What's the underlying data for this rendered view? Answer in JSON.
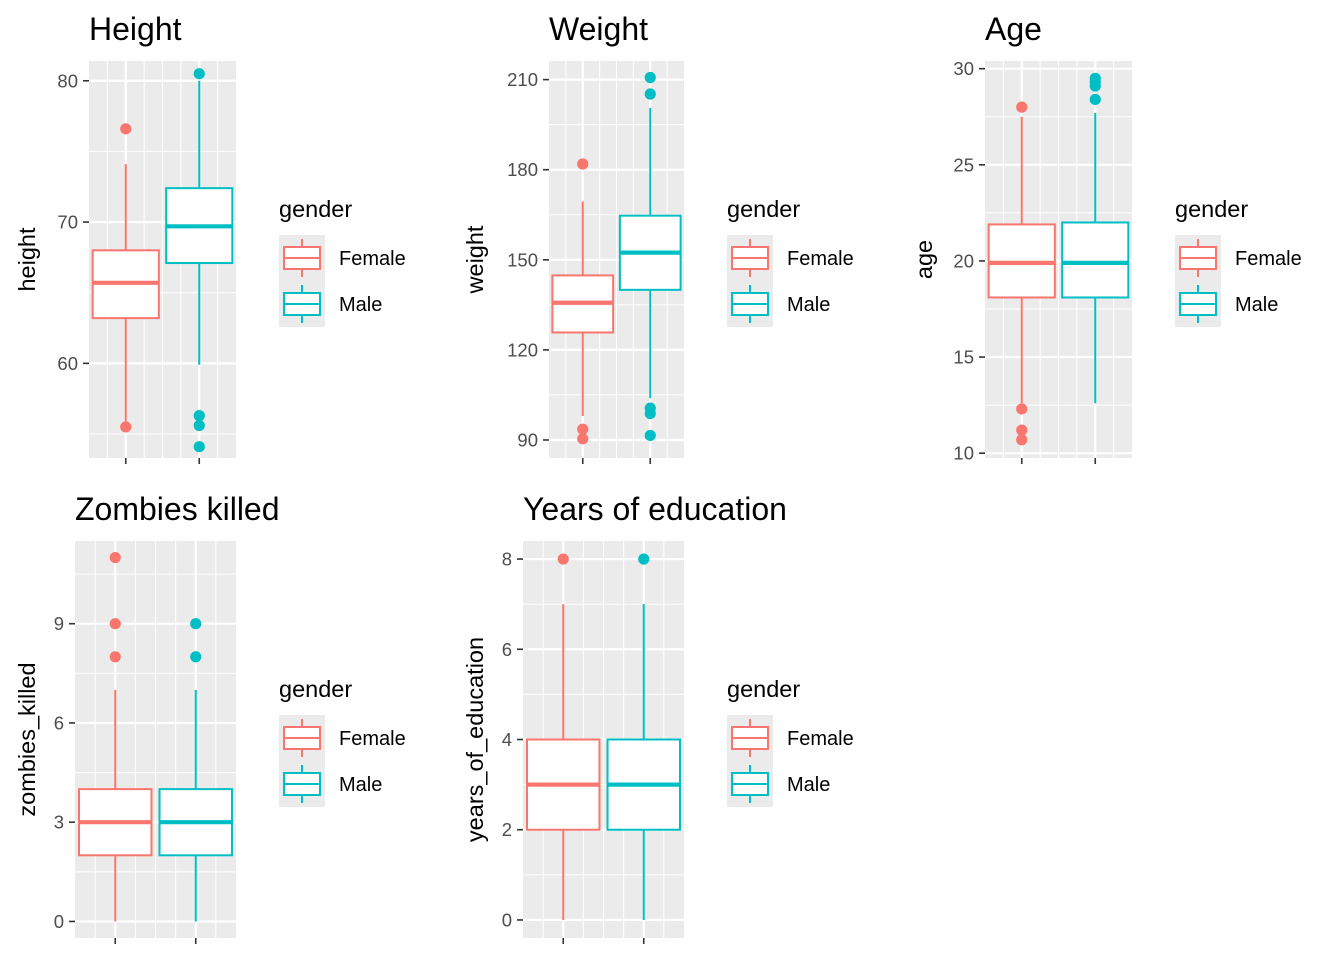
{
  "colors": {
    "Female": "#F8766D",
    "Male": "#00BFC4",
    "panel": "#EBEBEB",
    "grid_major": "#FFFFFF",
    "tick": "#333333"
  },
  "chart_data": [
    {
      "type": "boxplot",
      "title": "Height",
      "ylabel": "height",
      "xlabel": "",
      "yticks": [
        60,
        70,
        80
      ],
      "ylim": [
        53.3,
        81.4
      ],
      "legend": {
        "title": "gender",
        "entries": [
          "Female",
          "Male"
        ],
        "placement": "right"
      },
      "series": [
        {
          "name": "Female",
          "q1": 63.2,
          "median": 65.7,
          "q3": 68.0,
          "whisker_low": 55.5,
          "whisker_high": 74.1,
          "outliers": [
            55.5,
            76.6
          ]
        },
        {
          "name": "Male",
          "q1": 67.1,
          "median": 69.7,
          "q3": 72.4,
          "whisker_low": 59.9,
          "whisker_high": 80.0,
          "outliers": [
            56.3,
            55.6,
            54.1,
            80.5
          ]
        }
      ]
    },
    {
      "type": "boxplot",
      "title": "Weight",
      "ylabel": "weight",
      "xlabel": "",
      "yticks": [
        90,
        120,
        150,
        180,
        210
      ],
      "ylim": [
        84.0,
        216.2
      ],
      "legend": {
        "title": "gender",
        "entries": [
          "Female",
          "Male"
        ],
        "placement": "right"
      },
      "series": [
        {
          "name": "Female",
          "q1": 125.8,
          "median": 135.7,
          "q3": 144.8,
          "whisker_low": 98.0,
          "whisker_high": 169.4,
          "outliers": [
            181.9,
            93.6,
            90.4
          ]
        },
        {
          "name": "Male",
          "q1": 140.0,
          "median": 152.4,
          "q3": 164.7,
          "whisker_low": 103.9,
          "whisker_high": 200.6,
          "outliers": [
            210.7,
            205.2,
            100.6,
            98.8,
            91.5
          ]
        }
      ]
    },
    {
      "type": "boxplot",
      "title": "Age",
      "ylabel": "age",
      "xlabel": "",
      "yticks": [
        10,
        15,
        20,
        25,
        30
      ],
      "ylim": [
        9.75,
        30.4
      ],
      "legend": {
        "title": "gender",
        "entries": [
          "Female",
          "Male"
        ],
        "placement": "right"
      },
      "series": [
        {
          "name": "Female",
          "q1": 18.1,
          "median": 19.9,
          "q3": 21.9,
          "whisker_low": 12.6,
          "whisker_high": 27.5,
          "outliers": [
            28.0,
            12.3,
            11.2,
            10.7
          ]
        },
        {
          "name": "Male",
          "q1": 18.1,
          "median": 19.9,
          "q3": 22.0,
          "whisker_low": 12.6,
          "whisker_high": 27.7,
          "outliers": [
            29.5,
            29.3,
            29.1,
            28.4
          ]
        }
      ]
    },
    {
      "type": "boxplot",
      "title": "Zombies killed",
      "ylabel": "zombies_killed",
      "xlabel": "",
      "yticks": [
        0,
        3,
        6,
        9
      ],
      "ylim": [
        -0.5,
        11.5
      ],
      "legend": {
        "title": "gender",
        "entries": [
          "Female",
          "Male"
        ],
        "placement": "right"
      },
      "series": [
        {
          "name": "Female",
          "q1": 2,
          "median": 3,
          "q3": 4,
          "whisker_low": 0,
          "whisker_high": 7,
          "outliers": [
            11,
            9,
            8
          ]
        },
        {
          "name": "Male",
          "q1": 2,
          "median": 3,
          "q3": 4,
          "whisker_low": 0,
          "whisker_high": 7,
          "outliers": [
            9,
            8
          ]
        }
      ]
    },
    {
      "type": "boxplot",
      "title": "Years of education",
      "ylabel": "years_of_education",
      "xlabel": "",
      "yticks": [
        0,
        2,
        4,
        6,
        8
      ],
      "ylim": [
        -0.4,
        8.4
      ],
      "legend": {
        "title": "gender",
        "entries": [
          "Female",
          "Male"
        ],
        "placement": "right"
      },
      "series": [
        {
          "name": "Female",
          "q1": 2,
          "median": 3,
          "q3": 4,
          "whisker_low": 0,
          "whisker_high": 7,
          "outliers": [
            8
          ]
        },
        {
          "name": "Male",
          "q1": 2,
          "median": 3,
          "q3": 4,
          "whisker_low": 0,
          "whisker_high": 7,
          "outliers": [
            8
          ]
        }
      ]
    }
  ]
}
